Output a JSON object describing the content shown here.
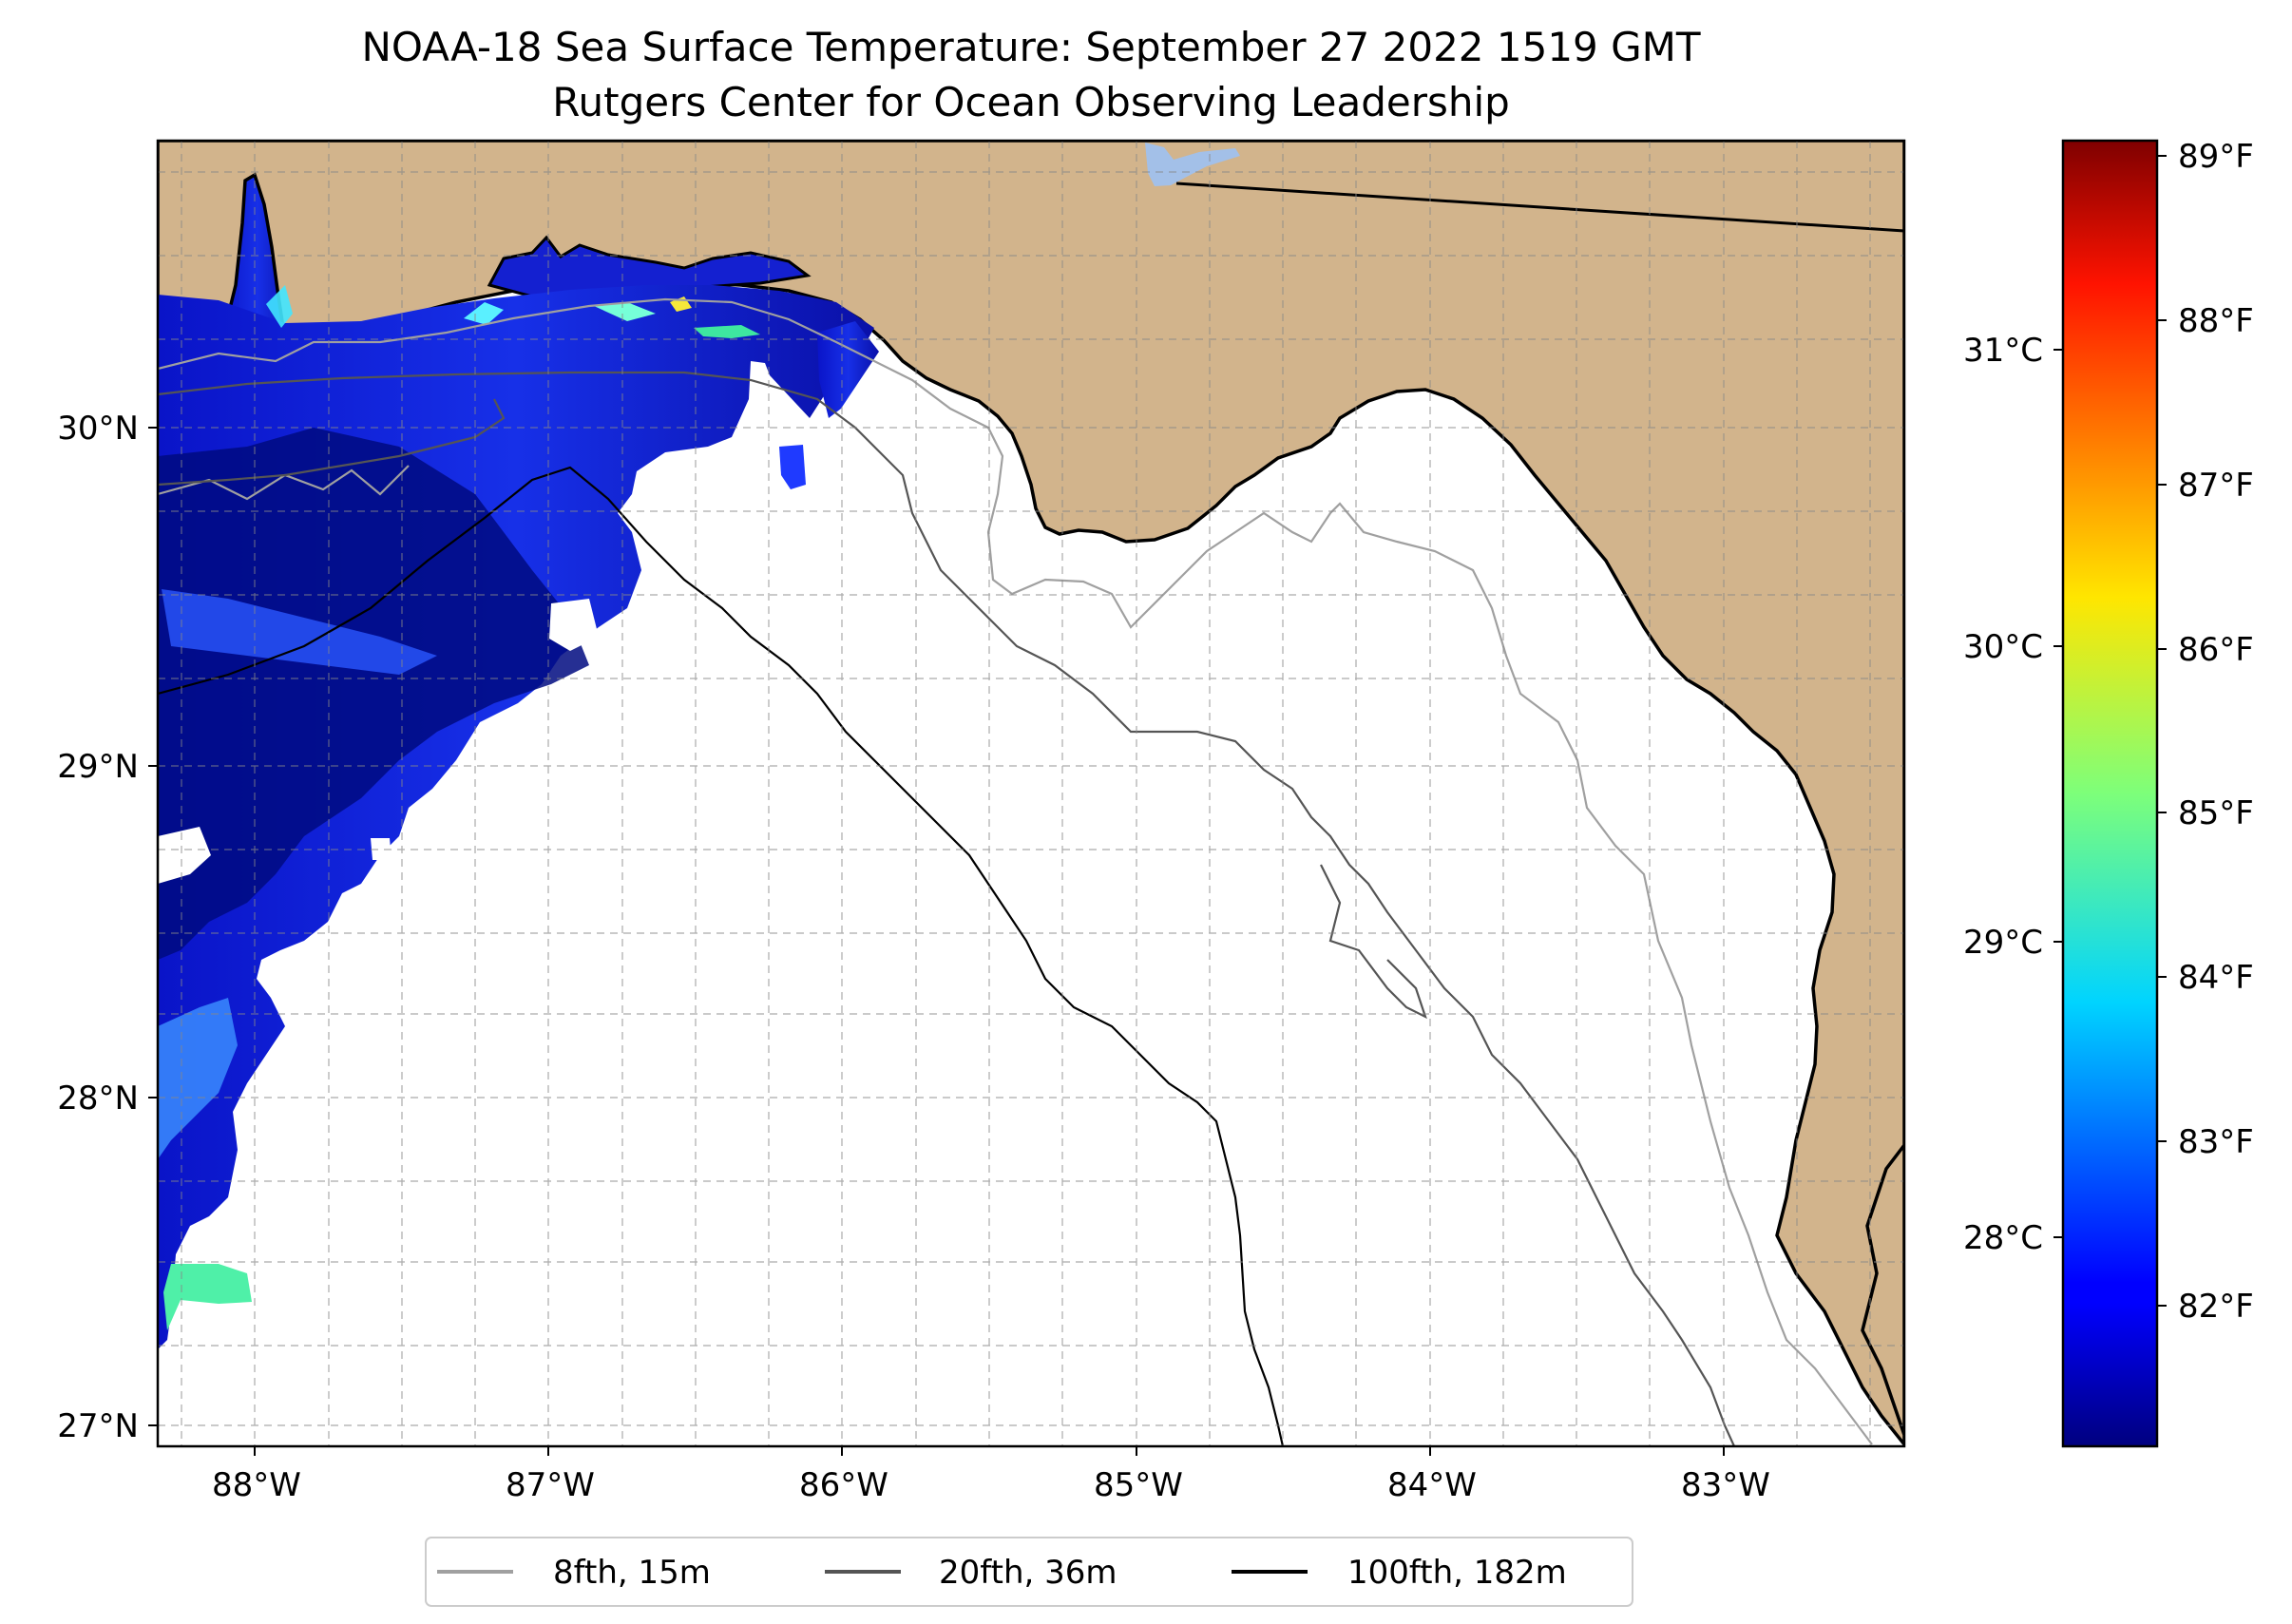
{
  "header": {
    "title": "NOAA-18 Sea Surface Temperature: September 27 2022 1519 GMT",
    "subtitle": "Rutgers Center for Ocean Observing Leadership"
  },
  "map": {
    "lon_range": [
      -88.33,
      -82.38
    ],
    "lat_range": [
      26.93,
      30.86
    ],
    "lat_ticks": [
      "30°N",
      "29°N",
      "28°N",
      "27°N"
    ],
    "lat_tick_values": [
      30,
      29,
      28,
      27
    ],
    "lon_ticks": [
      "88°W",
      "87°W",
      "86°W",
      "85°W",
      "84°W",
      "83°W"
    ],
    "lon_tick_values": [
      -88,
      -87,
      -86,
      -85,
      -84,
      -83
    ],
    "gridlines": "dashed, every 0.25°",
    "colors": {
      "land": "#d2b48c",
      "ocean_no_data": "#ffffff",
      "lake": "#a3c0e8"
    }
  },
  "colorbar": {
    "colormap": "jet",
    "range_f": [
      81.2,
      89.05
    ],
    "celsius_ticks": [
      "31°C",
      "30°C",
      "29°C",
      "28°C"
    ],
    "celsius_values": [
      31,
      30,
      29,
      28
    ],
    "fahrenheit_ticks": [
      "89°F",
      "88°F",
      "87°F",
      "86°F",
      "85°F",
      "84°F",
      "83°F",
      "82°F"
    ],
    "fahrenheit_values": [
      89,
      88,
      87,
      86,
      85,
      84,
      83,
      82
    ]
  },
  "legend": {
    "placement": "bottom-center",
    "items": [
      {
        "label": "8fth, 15m",
        "color": "#a0a0a0"
      },
      {
        "label": "20fth, 36m",
        "color": "#555555"
      },
      {
        "label": "100fth, 182m",
        "color": "#000000"
      }
    ]
  }
}
